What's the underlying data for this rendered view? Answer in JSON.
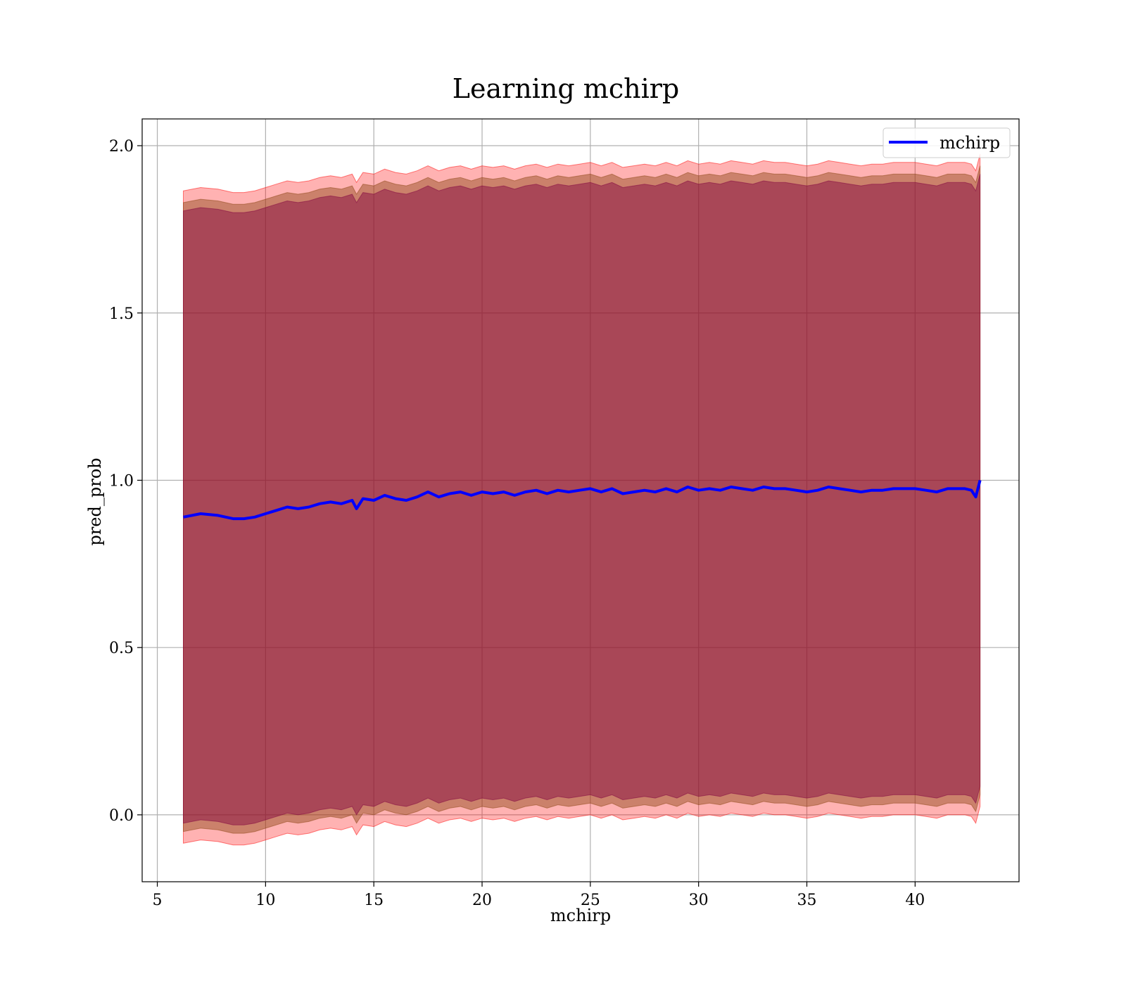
{
  "chart_data": {
    "type": "line",
    "title": "Learning mchirp",
    "xlabel": "mchirp",
    "ylabel": "pred_prob",
    "xlim": [
      4.3,
      44.8
    ],
    "ylim": [
      -0.2,
      2.08
    ],
    "xticks": [
      5,
      10,
      15,
      20,
      25,
      30,
      35,
      40
    ],
    "yticks": [
      0.0,
      0.5,
      1.0,
      1.5,
      2.0
    ],
    "grid": true,
    "legend": {
      "position": "top-right",
      "entries": [
        "mchirp"
      ]
    },
    "series": [
      {
        "name": "mchirp",
        "color": "#0000ff",
        "x": [
          6.2,
          7.0,
          7.8,
          8.5,
          9.0,
          9.5,
          10.0,
          10.5,
          11.0,
          11.5,
          12.0,
          12.5,
          13.0,
          13.5,
          14.0,
          14.2,
          14.5,
          15.0,
          15.5,
          16.0,
          16.5,
          17.0,
          17.5,
          18.0,
          18.5,
          19.0,
          19.5,
          20.0,
          20.5,
          21.0,
          21.5,
          22.0,
          22.5,
          23.0,
          23.5,
          24.0,
          24.5,
          25.0,
          25.5,
          26.0,
          26.5,
          27.0,
          27.5,
          28.0,
          28.5,
          29.0,
          29.5,
          30.0,
          30.5,
          31.0,
          31.5,
          32.0,
          32.5,
          33.0,
          33.5,
          34.0,
          34.5,
          35.0,
          35.5,
          36.0,
          36.5,
          37.0,
          37.5,
          38.0,
          38.5,
          39.0,
          39.5,
          40.0,
          40.5,
          41.0,
          41.5,
          42.0,
          42.3,
          42.6,
          42.8,
          43.0
        ],
        "y": [
          0.89,
          0.9,
          0.895,
          0.885,
          0.885,
          0.89,
          0.9,
          0.91,
          0.92,
          0.915,
          0.92,
          0.93,
          0.935,
          0.93,
          0.94,
          0.915,
          0.945,
          0.94,
          0.955,
          0.945,
          0.94,
          0.95,
          0.965,
          0.95,
          0.96,
          0.965,
          0.955,
          0.965,
          0.96,
          0.965,
          0.955,
          0.965,
          0.97,
          0.96,
          0.97,
          0.965,
          0.97,
          0.975,
          0.965,
          0.975,
          0.96,
          0.965,
          0.97,
          0.965,
          0.975,
          0.965,
          0.98,
          0.97,
          0.975,
          0.97,
          0.98,
          0.975,
          0.97,
          0.98,
          0.975,
          0.975,
          0.97,
          0.965,
          0.97,
          0.98,
          0.975,
          0.97,
          0.965,
          0.97,
          0.97,
          0.975,
          0.975,
          0.975,
          0.97,
          0.965,
          0.975,
          0.975,
          0.975,
          0.97,
          0.95,
          1.0
        ]
      }
    ],
    "bands": [
      {
        "halfwidth": 0.975,
        "color": "#ff0000",
        "opacity": 0.3
      },
      {
        "halfwidth": 0.94,
        "color": "#8b4513",
        "opacity": 0.45
      },
      {
        "halfwidth": 0.915,
        "color": "#800040",
        "opacity": 0.45
      }
    ]
  }
}
